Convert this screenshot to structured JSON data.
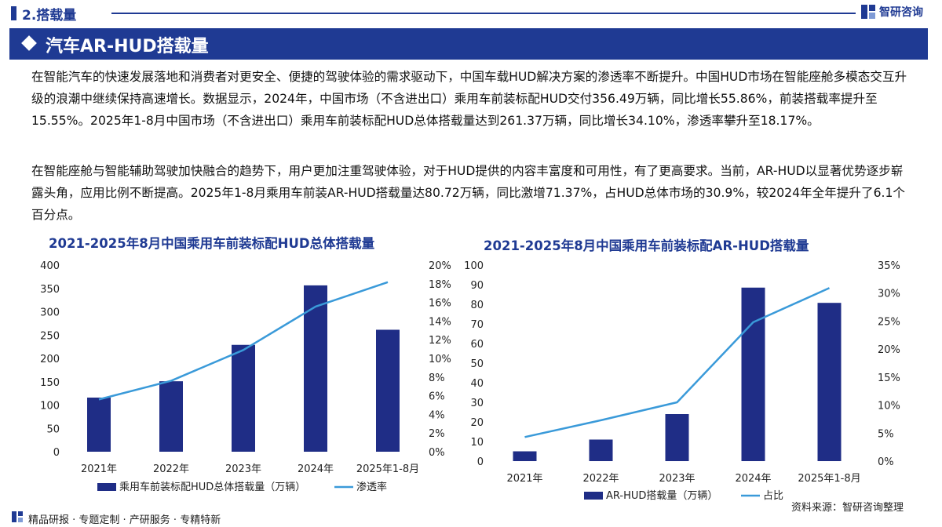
{
  "header": {
    "section_title": "2.搭载量",
    "logo_text": "智研咨询"
  },
  "banner": {
    "title": "汽车AR-HUD搭载量"
  },
  "paragraphs": [
    "在智能汽车的快速发展落地和消费者对更安全、便捷的驾驶体验的需求驱动下，中国车载HUD解决方案的渗透率不断提升。中国HUD市场在智能座舱多模态交互升级的浪潮中继续保持高速增长。数据显示，2024年，中国市场（不含进出口）乘用车前装标配HUD交付356.49万辆，同比增长55.86%，前装搭载率提升至15.55%。2025年1-8月中国市场（不含进出口）乘用车前装标配HUD总体搭载量达到261.37万辆，同比增长34.10%，渗透率攀升至18.17%。",
    "在智能座舱与智能辅助驾驶加快融合的趋势下，用户更加注重驾驶体验，对于HUD提供的内容丰富度和可用性，有了更高要求。当前，AR-HUD以显著优势逐步崭露头角，应用比例不断提高。2025年1-8月乘用车前装AR-HUD搭载量达80.72万辆，同比激增71.37%，占HUD总体市场的30.9%，较2024年全年提升了6.1个百分点。"
  ],
  "chart_data": [
    {
      "type": "bar",
      "title": "2021-2025年8月中国乘用车前装标配HUD总体搭载量",
      "categories": [
        "2021年",
        "2022年",
        "2023年",
        "2024年",
        "2025年1-8月"
      ],
      "series": [
        {
          "name": "乘用车前装标配HUD总体搭载量（万辆）",
          "type": "bar",
          "axis": "left",
          "values": [
            116,
            151,
            229,
            356.49,
            261.37
          ],
          "color": "#1f2d86"
        },
        {
          "name": "渗透率",
          "type": "line",
          "axis": "right",
          "values": [
            5.6,
            7.6,
            10.9,
            15.55,
            18.17
          ],
          "color": "#3a9ad9"
        }
      ],
      "y_left": {
        "min": 0,
        "max": 400,
        "step": 50,
        "ticks": [
          "0",
          "50",
          "100",
          "150",
          "200",
          "250",
          "300",
          "350",
          "400"
        ]
      },
      "y_right": {
        "min": 0,
        "max": 20,
        "step": 2,
        "ticks": [
          "0%",
          "2%",
          "4%",
          "6%",
          "8%",
          "10%",
          "12%",
          "14%",
          "16%",
          "18%",
          "20%"
        ]
      },
      "legend": [
        "乘用车前装标配HUD总体搭载量（万辆）",
        "渗透率"
      ],
      "legend_position": "bottom"
    },
    {
      "type": "bar",
      "title": "2021-2025年8月中国乘用车前装标配AR-HUD搭载量",
      "categories": [
        "2021年",
        "2022年",
        "2023年",
        "2024年",
        "2025年1-8月"
      ],
      "series": [
        {
          "name": "AR-HUD搭载量（万辆）",
          "type": "bar",
          "axis": "left",
          "values": [
            5,
            11,
            24,
            88.5,
            80.72
          ],
          "color": "#1f2d86"
        },
        {
          "name": "占比",
          "type": "line",
          "axis": "right",
          "values": [
            4.3,
            7.3,
            10.5,
            24.8,
            30.9
          ],
          "color": "#3a9ad9"
        }
      ],
      "y_left": {
        "min": 0,
        "max": 100,
        "step": 10,
        "ticks": [
          "0",
          "10",
          "20",
          "30",
          "40",
          "50",
          "60",
          "70",
          "80",
          "90",
          "100"
        ]
      },
      "y_right": {
        "min": 0,
        "max": 35,
        "step": 5,
        "ticks": [
          "0%",
          "5%",
          "10%",
          "15%",
          "20%",
          "25%",
          "30%",
          "35%"
        ]
      },
      "legend": [
        "AR-HUD搭载量（万辆）",
        "占比"
      ],
      "legend_position": "bottom"
    }
  ],
  "footer": {
    "text": "精品研报 · 专题定制 · 产研服务 · 专精特新",
    "source": "资料来源：智研咨询整理"
  },
  "colors": {
    "brand": "#1f3a93",
    "bar": "#1f2d86",
    "line": "#3a9ad9"
  }
}
